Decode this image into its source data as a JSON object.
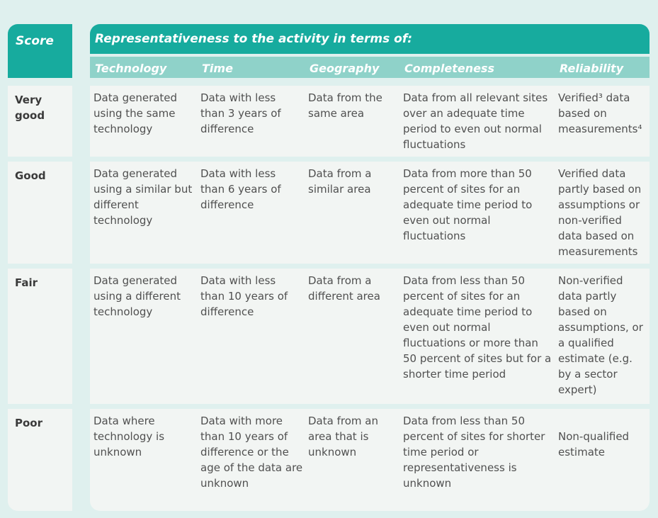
{
  "header": {
    "score": "Score",
    "representativeness": "Representativeness to the activity in terms of:",
    "columns": [
      "Technology",
      "Time",
      "Geography",
      "Completeness",
      "Reliability"
    ]
  },
  "rows": [
    {
      "score": "Very good",
      "technology": "Data generated using the same technology",
      "time": "Data with less than 3 years of difference",
      "geography": "Data from the same area",
      "completeness": "Data from all relevant sites over an adequate time period to even out normal fluctuations",
      "reliability": "Verified³ data based on measurements⁴"
    },
    {
      "score": "Good",
      "technology": "Data generated using a similar but different technology",
      "time": "Data with less than 6 years of difference",
      "geography": "Data from a similar area",
      "completeness": "Data from more than 50 percent of sites for an adequate time period to even out normal fluctuations",
      "reliability": "Verified data partly based on assumptions or non-verified data based on measurements"
    },
    {
      "score": "Fair",
      "technology": "Data generated using a different technology",
      "time": "Data with less than 10 years of difference",
      "geography": "Data from a different area",
      "completeness": "Data from less than 50 percent of sites for an adequate time period to even out normal fluctuations or more than 50 percent of sites but for a shorter time period",
      "reliability": "Non-verified data partly based on assumptions, or a qualified estimate (e.g. by a sector expert)"
    },
    {
      "score": "Poor",
      "technology": "Data where technology is unknown",
      "time": "Data with more than 10 years of difference or the age of the data are unknown",
      "geography": "Data from an area that is unknown",
      "completeness": "Data from less than 50 percent of sites for shorter time period or representativeness is unknown",
      "reliability": "Non-qualified estimate"
    }
  ]
}
